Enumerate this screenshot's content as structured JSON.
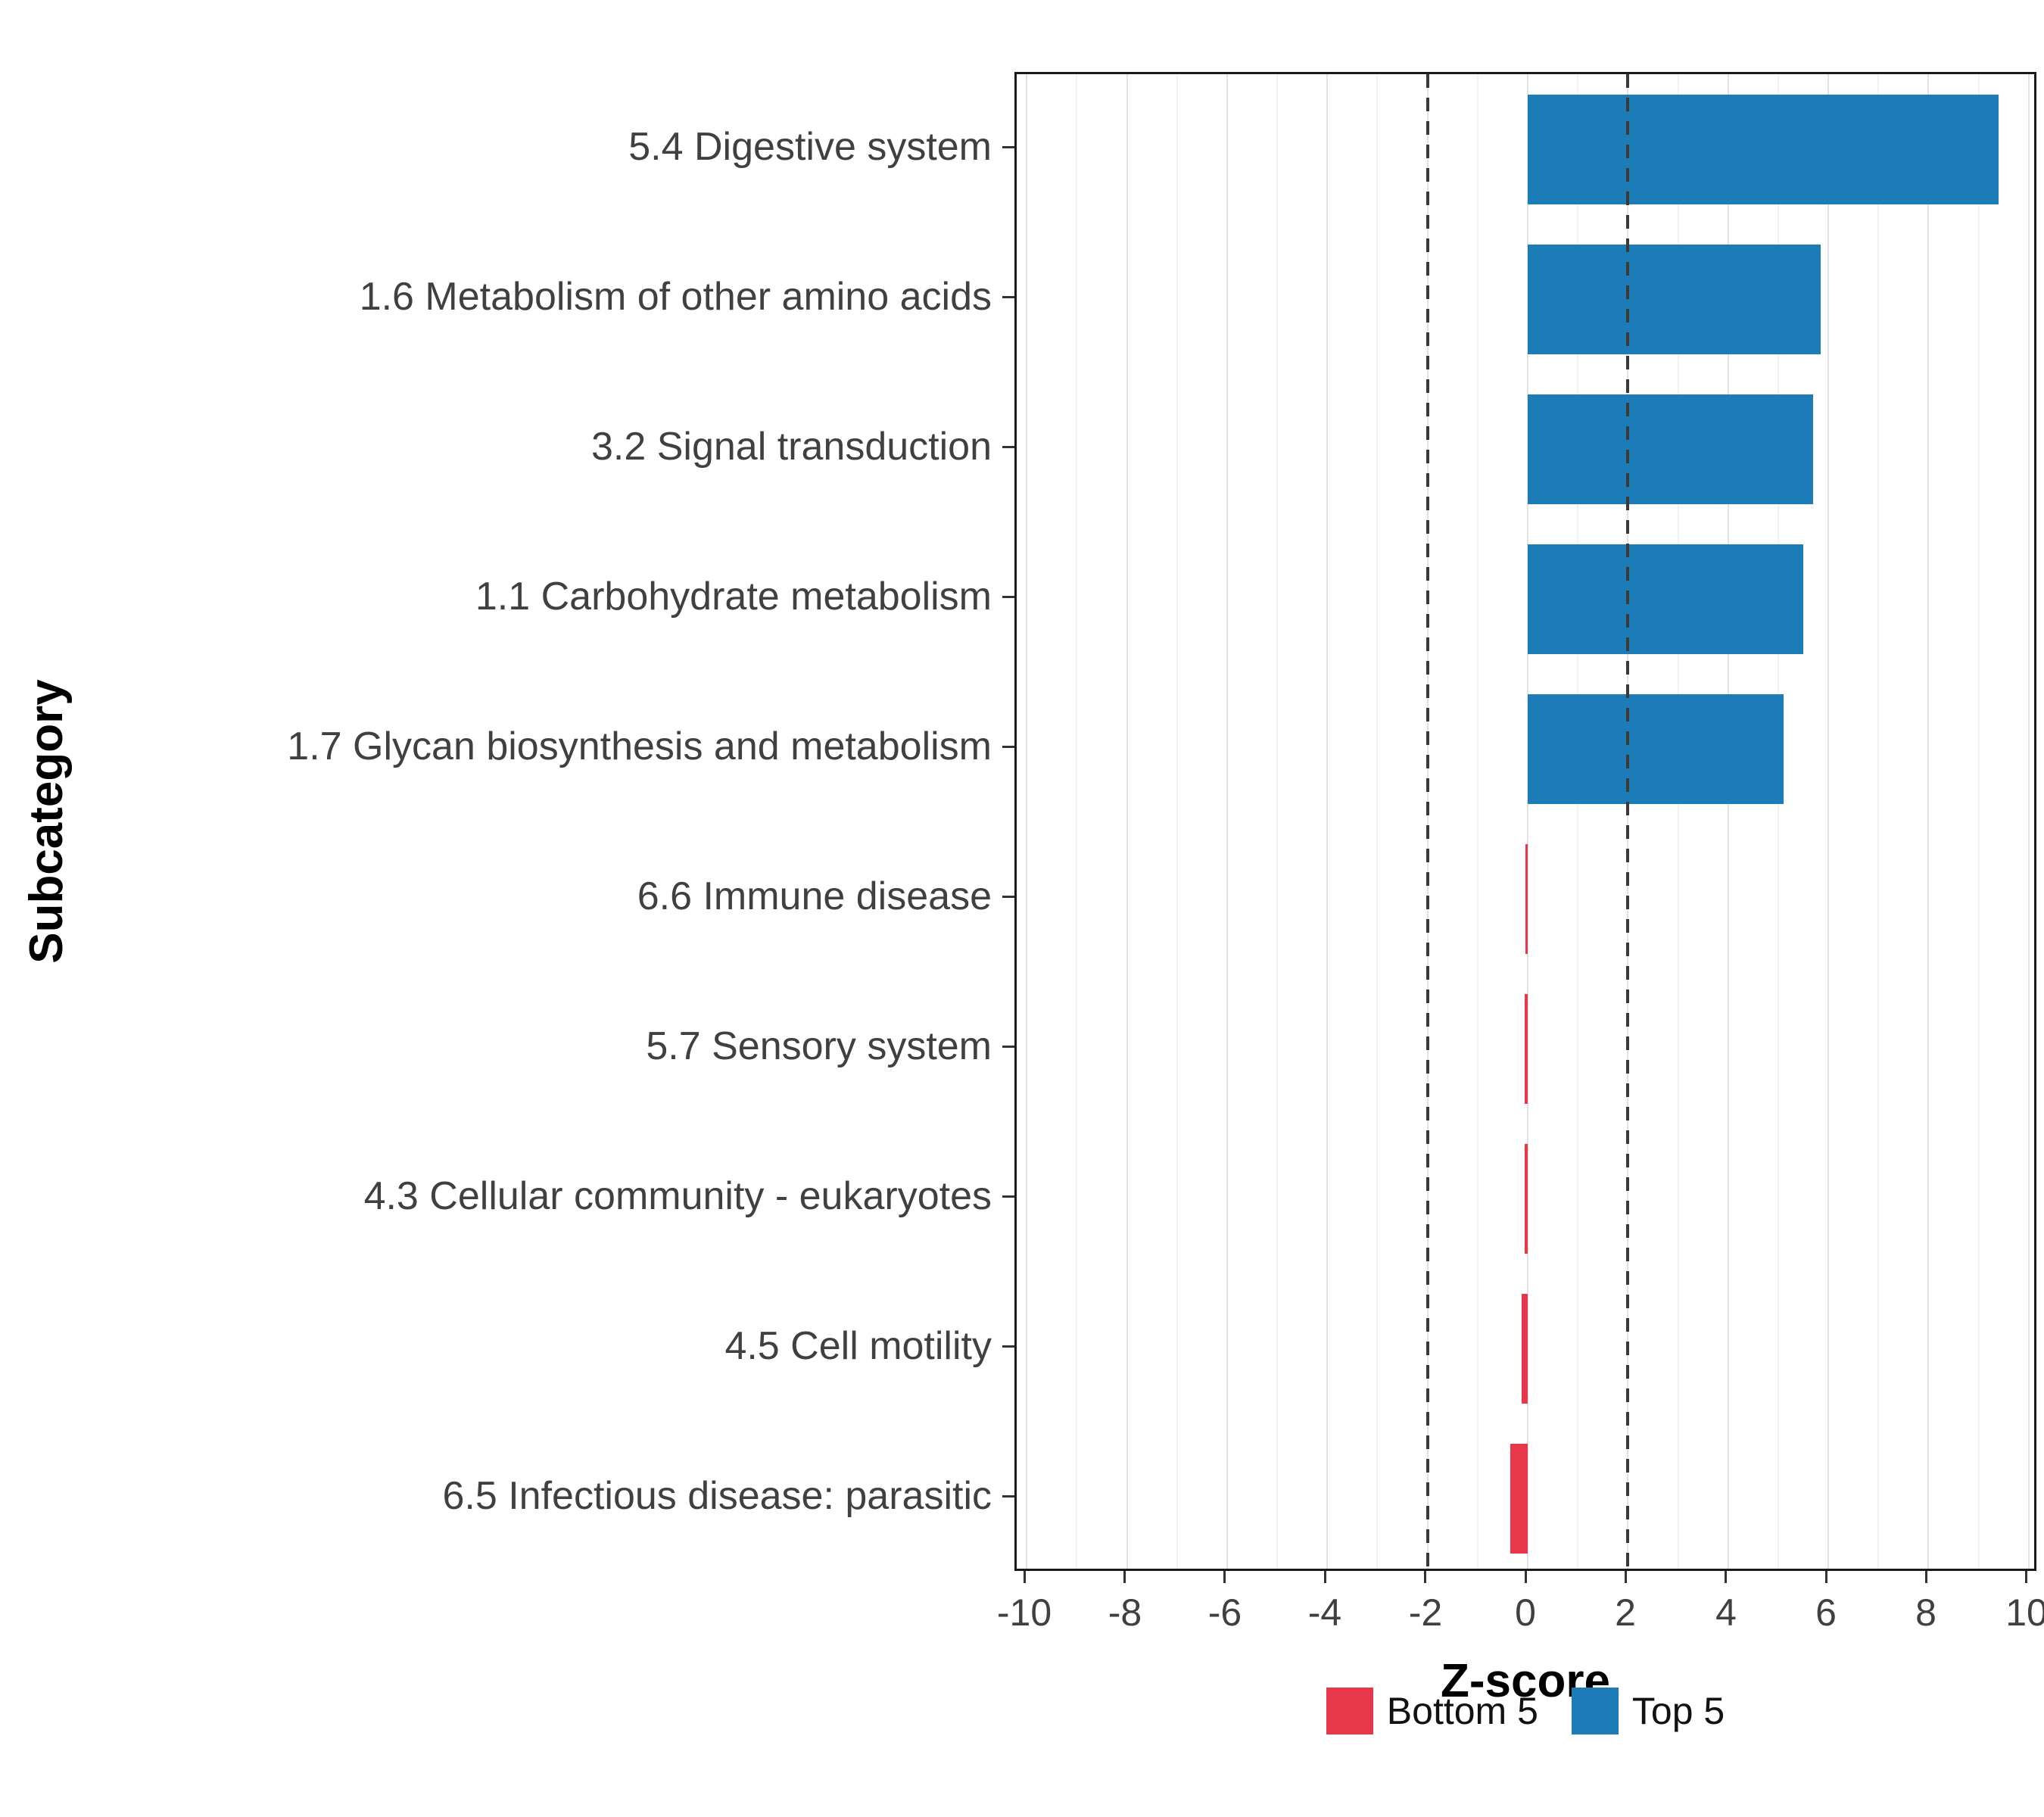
{
  "chart_data": {
    "type": "bar",
    "orientation": "horizontal",
    "title": "",
    "xlabel": "Z-score",
    "ylabel": "Subcategory",
    "xlim": [
      -10.2,
      10.2
    ],
    "xticks": [
      -10,
      -8,
      -6,
      -4,
      -2,
      0,
      2,
      4,
      6,
      8,
      10
    ],
    "minor_ticks": [
      -9,
      -7,
      -5,
      -3,
      -1,
      1,
      3,
      5,
      7,
      9
    ],
    "reference_lines": [
      -2,
      2
    ],
    "grid": true,
    "legend_position": "bottom",
    "categories": [
      "5.4 Digestive system",
      "1.6 Metabolism of other amino acids",
      "3.2 Signal transduction",
      "1.1 Carbohydrate metabolism",
      "1.7 Glycan biosynthesis and metabolism",
      "6.6 Immune disease",
      "5.7 Sensory system",
      "4.3 Cellular community - eukaryotes",
      "4.5 Cell motility",
      "6.5 Infectious disease: parasitic"
    ],
    "values": [
      9.4,
      5.85,
      5.7,
      5.5,
      5.1,
      -0.05,
      -0.06,
      -0.06,
      -0.12,
      -0.35
    ],
    "groups": [
      "Top 5",
      "Top 5",
      "Top 5",
      "Top 5",
      "Top 5",
      "Bottom 5",
      "Bottom 5",
      "Bottom 5",
      "Bottom 5",
      "Bottom 5"
    ],
    "colors": {
      "Top 5": "#1c7cb8",
      "Bottom 5": "#e8364a"
    },
    "legend": [
      {
        "label": "Bottom 5",
        "color": "#e8364a"
      },
      {
        "label": "Top 5",
        "color": "#1c7cb8"
      }
    ]
  }
}
